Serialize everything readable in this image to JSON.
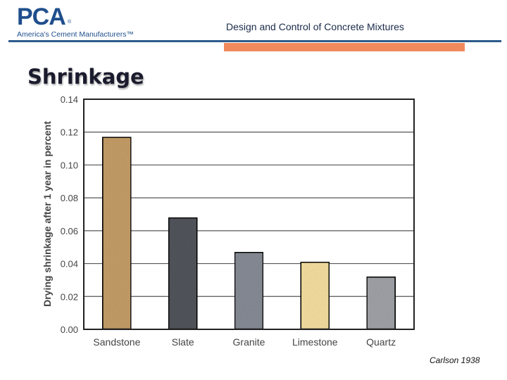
{
  "header": {
    "logo_text": "PCA",
    "logo_mark": "®",
    "logo_subtitle": "America's Cement Manufacturers™",
    "title": "Design and Control of Concrete Mixtures"
  },
  "slide": {
    "title": "Shrinkage",
    "citation": "Carlson 1938"
  },
  "colors": {
    "brand_blue": "#1f4e8c",
    "accent_orange": "#f08a5d"
  },
  "chart_data": {
    "type": "bar",
    "title": "",
    "xlabel": "",
    "ylabel": "Drying shrinkage after 1 year in percent",
    "categories": [
      "Sandstone",
      "Slate",
      "Granite",
      "Limestone",
      "Quartz"
    ],
    "values": [
      0.117,
      0.068,
      0.047,
      0.041,
      0.032
    ],
    "bar_colors": [
      "#c9a16a",
      "#55585f",
      "#8a8f99",
      "#fbe3a3",
      "#a4a6ab"
    ],
    "ylim": [
      0,
      0.14
    ],
    "yticks": [
      "0.00",
      "0.02",
      "0.04",
      "0.06",
      "0.08",
      "0.10",
      "0.12",
      "0.14"
    ],
    "grid": true
  }
}
